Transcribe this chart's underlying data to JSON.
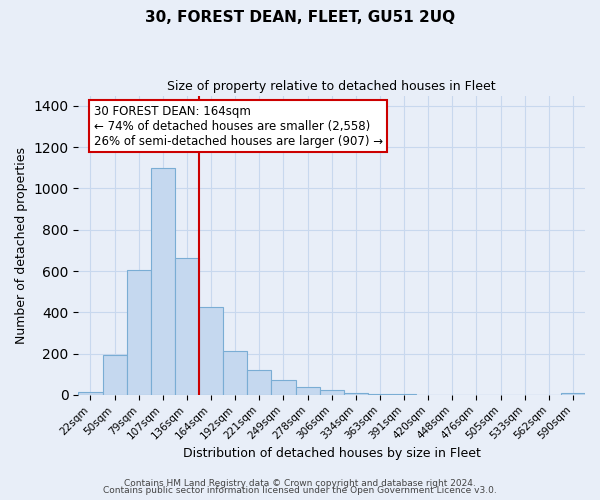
{
  "title": "30, FOREST DEAN, FLEET, GU51 2UQ",
  "subtitle": "Size of property relative to detached houses in Fleet",
  "xlabel": "Distribution of detached houses by size in Fleet",
  "ylabel": "Number of detached properties",
  "footer_lines": [
    "Contains HM Land Registry data © Crown copyright and database right 2024.",
    "Contains public sector information licensed under the Open Government Licence v3.0."
  ],
  "bar_labels": [
    "22sqm",
    "50sqm",
    "79sqm",
    "107sqm",
    "136sqm",
    "164sqm",
    "192sqm",
    "221sqm",
    "249sqm",
    "278sqm",
    "306sqm",
    "334sqm",
    "363sqm",
    "391sqm",
    "420sqm",
    "448sqm",
    "476sqm",
    "505sqm",
    "533sqm",
    "562sqm",
    "590sqm"
  ],
  "bar_values": [
    15,
    193,
    607,
    1100,
    665,
    428,
    212,
    122,
    73,
    37,
    25,
    10,
    5,
    3,
    0,
    0,
    0,
    0,
    0,
    0,
    8
  ],
  "bar_color": "#c5d8ef",
  "bar_edge_color": "#7aadd4",
  "vline_color": "#cc0000",
  "annotation_title": "30 FOREST DEAN: 164sqm",
  "annotation_line1": "← 74% of detached houses are smaller (2,558)",
  "annotation_line2": "26% of semi-detached houses are larger (907) →",
  "annotation_box_facecolor": "#ffffff",
  "annotation_box_edgecolor": "#cc0000",
  "ylim": [
    0,
    1450
  ],
  "yticks": [
    0,
    200,
    400,
    600,
    800,
    1000,
    1200,
    1400
  ],
  "grid_color": "#c8d8ee",
  "background_color": "#e8eef8",
  "plot_bg_color": "#e8eef8",
  "title_fontsize": 11,
  "subtitle_fontsize": 9,
  "ylabel_fontsize": 9,
  "xlabel_fontsize": 9,
  "tick_fontsize": 7.5,
  "footer_fontsize": 6.5,
  "ann_fontsize": 8.5
}
